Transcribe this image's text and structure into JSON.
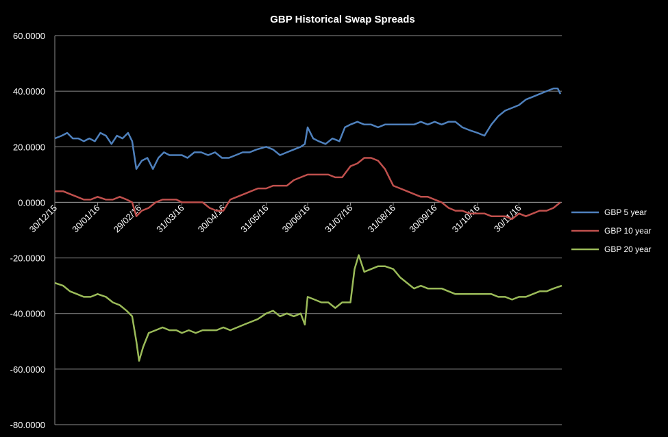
{
  "chart_data": {
    "type": "line",
    "title": "GBP Historical Swap Spreads",
    "xlabel": "",
    "ylabel": "",
    "xlim": [
      "30/12/15",
      "31/12/16"
    ],
    "ylim": [
      -80,
      60
    ],
    "y_ticks": [
      60,
      40,
      20,
      0,
      -20,
      -40,
      -60,
      -80
    ],
    "y_tick_labels": [
      "60.0000",
      "40.0000",
      "20.0000",
      "0.0000",
      "-20.0000",
      "-40.0000",
      "-60.0000",
      "-80.0000"
    ],
    "x_ticks": [
      "30/12/15",
      "30/01/16",
      "29/02/16",
      "31/03/16",
      "30/04/16",
      "31/05/16",
      "30/06/16",
      "31/07/16",
      "31/08/16",
      "30/09/16",
      "31/10/16",
      "30/11/16"
    ],
    "grid": true,
    "legend_position": "right",
    "series": [
      {
        "name": "GBP 5 year",
        "color": "#4f81bd",
        "points": [
          [
            "30/12/15",
            23
          ],
          [
            "04/01/16",
            24
          ],
          [
            "08/01/16",
            25
          ],
          [
            "12/01/16",
            23
          ],
          [
            "16/01/16",
            23
          ],
          [
            "20/01/16",
            22
          ],
          [
            "24/01/16",
            23
          ],
          [
            "28/01/16",
            22
          ],
          [
            "01/02/16",
            25
          ],
          [
            "05/02/16",
            24
          ],
          [
            "09/02/16",
            21
          ],
          [
            "13/02/16",
            24
          ],
          [
            "17/02/16",
            23
          ],
          [
            "21/02/16",
            25
          ],
          [
            "24/02/16",
            22
          ],
          [
            "27/02/16",
            12
          ],
          [
            "02/03/16",
            15
          ],
          [
            "06/03/16",
            16
          ],
          [
            "10/03/16",
            12
          ],
          [
            "14/03/16",
            16
          ],
          [
            "18/03/16",
            18
          ],
          [
            "22/03/16",
            17
          ],
          [
            "26/03/16",
            17
          ],
          [
            "31/03/16",
            17
          ],
          [
            "04/04/16",
            16
          ],
          [
            "09/04/16",
            18
          ],
          [
            "14/04/16",
            18
          ],
          [
            "19/04/16",
            17
          ],
          [
            "24/04/16",
            18
          ],
          [
            "29/04/16",
            16
          ],
          [
            "04/05/16",
            16
          ],
          [
            "09/05/16",
            17
          ],
          [
            "14/05/16",
            18
          ],
          [
            "19/05/16",
            18
          ],
          [
            "24/05/16",
            19
          ],
          [
            "31/05/16",
            20
          ],
          [
            "05/06/16",
            19
          ],
          [
            "10/06/16",
            17
          ],
          [
            "15/06/16",
            18
          ],
          [
            "20/06/16",
            19
          ],
          [
            "25/06/16",
            20
          ],
          [
            "28/06/16",
            21
          ],
          [
            "30/06/16",
            27
          ],
          [
            "04/07/16",
            23
          ],
          [
            "08/07/16",
            22
          ],
          [
            "13/07/16",
            21
          ],
          [
            "18/07/16",
            23
          ],
          [
            "23/07/16",
            22
          ],
          [
            "27/07/16",
            27
          ],
          [
            "31/07/16",
            28
          ],
          [
            "05/08/16",
            29
          ],
          [
            "10/08/16",
            28
          ],
          [
            "15/08/16",
            28
          ],
          [
            "20/08/16",
            27
          ],
          [
            "25/08/16",
            28
          ],
          [
            "31/08/16",
            28
          ],
          [
            "05/09/16",
            28
          ],
          [
            "10/09/16",
            28
          ],
          [
            "15/09/16",
            28
          ],
          [
            "20/09/16",
            29
          ],
          [
            "25/09/16",
            28
          ],
          [
            "30/09/16",
            29
          ],
          [
            "05/10/16",
            28
          ],
          [
            "10/10/16",
            29
          ],
          [
            "15/10/16",
            29
          ],
          [
            "20/10/16",
            27
          ],
          [
            "25/10/16",
            26
          ],
          [
            "31/10/16",
            25
          ],
          [
            "05/11/16",
            24
          ],
          [
            "10/11/16",
            28
          ],
          [
            "15/11/16",
            31
          ],
          [
            "20/11/16",
            33
          ],
          [
            "25/11/16",
            34
          ],
          [
            "30/11/16",
            35
          ],
          [
            "05/12/16",
            37
          ],
          [
            "10/12/16",
            38
          ],
          [
            "15/12/16",
            39
          ],
          [
            "20/12/16",
            40
          ],
          [
            "25/12/16",
            41
          ],
          [
            "28/12/16",
            41
          ],
          [
            "30/12/16",
            39
          ]
        ]
      },
      {
        "name": "GBP 10 year",
        "color": "#c0504d",
        "points": [
          [
            "30/12/15",
            4
          ],
          [
            "05/01/16",
            4
          ],
          [
            "10/01/16",
            3
          ],
          [
            "15/01/16",
            2
          ],
          [
            "20/01/16",
            1
          ],
          [
            "25/01/16",
            1
          ],
          [
            "30/01/16",
            2
          ],
          [
            "05/02/16",
            1
          ],
          [
            "10/02/16",
            1
          ],
          [
            "15/02/16",
            2
          ],
          [
            "20/02/16",
            1
          ],
          [
            "24/02/16",
            0
          ],
          [
            "27/02/16",
            -5
          ],
          [
            "02/03/16",
            -3
          ],
          [
            "07/03/16",
            -2
          ],
          [
            "12/03/16",
            0
          ],
          [
            "17/03/16",
            1
          ],
          [
            "22/03/16",
            1
          ],
          [
            "27/03/16",
            1
          ],
          [
            "31/03/16",
            0
          ],
          [
            "05/04/16",
            0
          ],
          [
            "10/04/16",
            0
          ],
          [
            "15/04/16",
            0
          ],
          [
            "20/04/16",
            -2
          ],
          [
            "25/04/16",
            -3
          ],
          [
            "30/04/16",
            -3
          ],
          [
            "05/05/16",
            1
          ],
          [
            "10/05/16",
            2
          ],
          [
            "15/05/16",
            3
          ],
          [
            "20/05/16",
            4
          ],
          [
            "25/05/16",
            5
          ],
          [
            "31/05/16",
            5
          ],
          [
            "05/06/16",
            6
          ],
          [
            "10/06/16",
            6
          ],
          [
            "15/06/16",
            6
          ],
          [
            "20/06/16",
            8
          ],
          [
            "25/06/16",
            9
          ],
          [
            "30/06/16",
            10
          ],
          [
            "05/07/16",
            10
          ],
          [
            "10/07/16",
            10
          ],
          [
            "15/07/16",
            10
          ],
          [
            "20/07/16",
            9
          ],
          [
            "25/07/16",
            9
          ],
          [
            "31/07/16",
            13
          ],
          [
            "05/08/16",
            14
          ],
          [
            "10/08/16",
            16
          ],
          [
            "15/08/16",
            16
          ],
          [
            "20/08/16",
            15
          ],
          [
            "25/08/16",
            12
          ],
          [
            "31/08/16",
            6
          ],
          [
            "05/09/16",
            5
          ],
          [
            "10/09/16",
            4
          ],
          [
            "15/09/16",
            3
          ],
          [
            "20/09/16",
            2
          ],
          [
            "25/09/16",
            2
          ],
          [
            "30/09/16",
            1
          ],
          [
            "05/10/16",
            0
          ],
          [
            "10/10/16",
            -2
          ],
          [
            "15/10/16",
            -3
          ],
          [
            "20/10/16",
            -3
          ],
          [
            "25/10/16",
            -4
          ],
          [
            "31/10/16",
            -4
          ],
          [
            "05/11/16",
            -4
          ],
          [
            "10/11/16",
            -5
          ],
          [
            "15/11/16",
            -5
          ],
          [
            "20/11/16",
            -5
          ],
          [
            "25/11/16",
            -6
          ],
          [
            "30/11/16",
            -4
          ],
          [
            "05/12/16",
            -5
          ],
          [
            "10/12/16",
            -4
          ],
          [
            "15/12/16",
            -3
          ],
          [
            "20/12/16",
            -3
          ],
          [
            "25/12/16",
            -2
          ],
          [
            "30/12/16",
            0
          ]
        ]
      },
      {
        "name": "GBP 20 year",
        "color": "#9bbb59",
        "points": [
          [
            "30/12/15",
            -29
          ],
          [
            "05/01/16",
            -30
          ],
          [
            "10/01/16",
            -32
          ],
          [
            "15/01/16",
            -33
          ],
          [
            "20/01/16",
            -34
          ],
          [
            "25/01/16",
            -34
          ],
          [
            "30/01/16",
            -33
          ],
          [
            "05/02/16",
            -34
          ],
          [
            "10/02/16",
            -36
          ],
          [
            "15/02/16",
            -37
          ],
          [
            "20/02/16",
            -39
          ],
          [
            "24/02/16",
            -41
          ],
          [
            "27/02/16",
            -50
          ],
          [
            "29/02/16",
            -57
          ],
          [
            "03/03/16",
            -52
          ],
          [
            "07/03/16",
            -47
          ],
          [
            "12/03/16",
            -46
          ],
          [
            "17/03/16",
            -45
          ],
          [
            "22/03/16",
            -46
          ],
          [
            "27/03/16",
            -46
          ],
          [
            "31/03/16",
            -47
          ],
          [
            "05/04/16",
            -46
          ],
          [
            "10/04/16",
            -47
          ],
          [
            "15/04/16",
            -46
          ],
          [
            "20/04/16",
            -46
          ],
          [
            "25/04/16",
            -46
          ],
          [
            "30/04/16",
            -45
          ],
          [
            "05/05/16",
            -46
          ],
          [
            "10/05/16",
            -45
          ],
          [
            "15/05/16",
            -44
          ],
          [
            "20/05/16",
            -43
          ],
          [
            "25/05/16",
            -42
          ],
          [
            "31/05/16",
            -40
          ],
          [
            "05/06/16",
            -39
          ],
          [
            "10/06/16",
            -41
          ],
          [
            "15/06/16",
            -40
          ],
          [
            "20/06/16",
            -41
          ],
          [
            "25/06/16",
            -40
          ],
          [
            "28/06/16",
            -44
          ],
          [
            "30/06/16",
            -34
          ],
          [
            "05/07/16",
            -35
          ],
          [
            "10/07/16",
            -36
          ],
          [
            "15/07/16",
            -36
          ],
          [
            "20/07/16",
            -38
          ],
          [
            "25/07/16",
            -36
          ],
          [
            "31/07/16",
            -36
          ],
          [
            "03/08/16",
            -24
          ],
          [
            "06/08/16",
            -19
          ],
          [
            "10/08/16",
            -25
          ],
          [
            "15/08/16",
            -24
          ],
          [
            "20/08/16",
            -23
          ],
          [
            "25/08/16",
            -23
          ],
          [
            "31/08/16",
            -24
          ],
          [
            "05/09/16",
            -27
          ],
          [
            "10/09/16",
            -29
          ],
          [
            "15/09/16",
            -31
          ],
          [
            "20/09/16",
            -30
          ],
          [
            "25/09/16",
            -31
          ],
          [
            "30/09/16",
            -31
          ],
          [
            "05/10/16",
            -31
          ],
          [
            "10/10/16",
            -32
          ],
          [
            "15/10/16",
            -33
          ],
          [
            "20/10/16",
            -33
          ],
          [
            "25/10/16",
            -33
          ],
          [
            "31/10/16",
            -33
          ],
          [
            "05/11/16",
            -33
          ],
          [
            "10/11/16",
            -33
          ],
          [
            "15/11/16",
            -34
          ],
          [
            "20/11/16",
            -34
          ],
          [
            "25/11/16",
            -35
          ],
          [
            "30/11/16",
            -34
          ],
          [
            "05/12/16",
            -34
          ],
          [
            "10/12/16",
            -33
          ],
          [
            "15/12/16",
            -32
          ],
          [
            "20/12/16",
            -32
          ],
          [
            "25/12/16",
            -31
          ],
          [
            "31/12/16",
            -30
          ]
        ]
      }
    ]
  }
}
